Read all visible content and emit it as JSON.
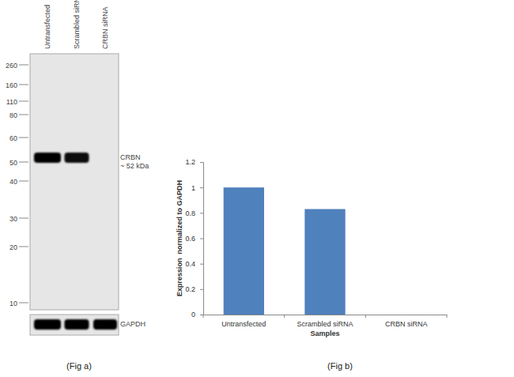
{
  "blot": {
    "lanes": [
      "Untransfected",
      "Scrambled siRNA",
      "CRBN siRNA"
    ],
    "markers": [
      260,
      160,
      110,
      80,
      60,
      50,
      40,
      30,
      20,
      10
    ],
    "bands": [
      {
        "label": "CRBN",
        "size_label": "~ 52 kDa",
        "intensity": [
          1,
          0.95,
          0
        ]
      },
      {
        "label": "GAPDH",
        "intensity": [
          1,
          1,
          1
        ]
      }
    ],
    "caption": "(Fig a)"
  },
  "chart_data": {
    "type": "bar",
    "categories": [
      "Untransfected",
      "Scrambled siRNA",
      "CRBN siRNA"
    ],
    "values": [
      1,
      0.83,
      0
    ],
    "color": "#4f81bd",
    "x_label": "Samples",
    "y_label": "Expression  normalized to GAPDH",
    "ylim": [
      0,
      1.2
    ],
    "yticks": [
      0,
      0.2,
      0.4,
      0.6,
      0.8,
      1,
      1.2
    ],
    "grid": false,
    "caption": "(Fig b)"
  }
}
